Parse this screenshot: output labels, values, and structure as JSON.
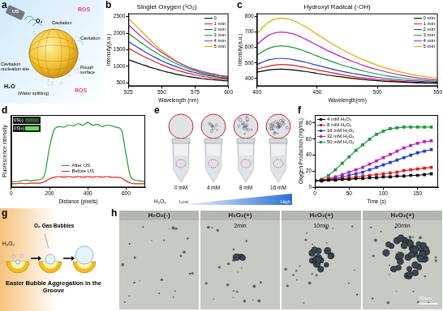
{
  "chart_data": [
    {
      "panel": "b",
      "type": "line",
      "title": "Singlet Oxygen (¹O₂)",
      "x_label": "Wavelength (nm)",
      "y_label": "Intensity(a.u.)",
      "x": [
        525,
        530,
        535,
        540,
        545,
        550,
        555,
        560,
        565,
        570,
        575,
        580,
        585,
        590,
        595,
        600
      ],
      "series": [
        {
          "name": "0",
          "color": "#000000",
          "values": [
            1200,
            1130,
            1060,
            990,
            930,
            870,
            820,
            770,
            730,
            690,
            660,
            630,
            610,
            590,
            570,
            560
          ]
        },
        {
          "name": "1 min",
          "color": "#e41a1c",
          "values": [
            1550,
            1440,
            1330,
            1230,
            1140,
            1050,
            970,
            900,
            840,
            790,
            740,
            700,
            670,
            640,
            620,
            600
          ]
        },
        {
          "name": "2 min",
          "color": "#1f3fd0",
          "values": [
            1750,
            1620,
            1500,
            1380,
            1270,
            1170,
            1080,
            1000,
            930,
            860,
            810,
            760,
            720,
            690,
            660,
            640
          ]
        },
        {
          "name": "3 min",
          "color": "#1a9a3a",
          "values": [
            2000,
            1850,
            1700,
            1560,
            1430,
            1310,
            1200,
            1100,
            1010,
            930,
            870,
            810,
            770,
            730,
            700,
            670
          ]
        },
        {
          "name": "4 min",
          "color": "#c020c0",
          "values": [
            2250,
            2070,
            1890,
            1720,
            1570,
            1420,
            1290,
            1170,
            1070,
            980,
            910,
            850,
            800,
            760,
            720,
            690
          ]
        },
        {
          "name": "5 min",
          "color": "#e0a800",
          "values": [
            2450,
            2250,
            2050,
            1850,
            1650,
            1480,
            1320,
            1180,
            1060,
            960,
            880,
            810,
            750,
            700,
            660,
            630
          ]
        }
      ],
      "xlim": [
        525,
        600
      ],
      "xticks": [
        525,
        550,
        575,
        600
      ],
      "ylim": [
        400,
        2600
      ],
      "yticks": [
        500,
        1000,
        1500,
        2000,
        2500
      ],
      "grid": false,
      "legend": "upper right",
      "marker": "none",
      "line_style": "solid"
    },
    {
      "panel": "c",
      "type": "line",
      "title": "Hydroxyl Radical (·OH)",
      "x_label": "Wavelength(nm)",
      "y_label": "Intensity(a.u.)",
      "x": [
        400,
        410,
        420,
        430,
        440,
        450,
        460,
        470,
        480,
        490,
        500,
        510,
        520,
        530,
        540,
        550
      ],
      "series": [
        {
          "name": "0 min",
          "color": "#000000",
          "values": [
            440,
            455,
            460,
            455,
            445,
            432,
            420,
            410,
            400,
            392,
            385,
            380,
            376,
            372,
            370,
            368
          ]
        },
        {
          "name": "1 min",
          "color": "#e41a1c",
          "values": [
            460,
            480,
            490,
            485,
            470,
            455,
            440,
            425,
            412,
            402,
            394,
            388,
            382,
            377,
            373,
            370
          ]
        },
        {
          "name": "2 min",
          "color": "#1f3fd0",
          "values": [
            490,
            520,
            530,
            522,
            505,
            485,
            465,
            447,
            432,
            418,
            407,
            398,
            390,
            384,
            379,
            375
          ]
        },
        {
          "name": "3 min",
          "color": "#1a9a3a",
          "values": [
            550,
            595,
            610,
            600,
            575,
            545,
            515,
            488,
            465,
            445,
            428,
            414,
            403,
            394,
            387,
            381
          ]
        },
        {
          "name": "4 min",
          "color": "#c020c0",
          "values": [
            620,
            680,
            700,
            688,
            655,
            615,
            575,
            540,
            508,
            480,
            457,
            437,
            421,
            408,
            397,
            389
          ]
        },
        {
          "name": "5 min",
          "color": "#e0a800",
          "values": [
            690,
            765,
            790,
            775,
            735,
            685,
            635,
            590,
            550,
            515,
            485,
            460,
            440,
            423,
            410,
            400
          ]
        }
      ],
      "xlim": [
        400,
        550
      ],
      "xticks": [
        400,
        450,
        500,
        550
      ],
      "ylim": [
        350,
        820
      ],
      "yticks": [
        400,
        500,
        600,
        700,
        800
      ],
      "grid": false,
      "legend": "upper right",
      "marker": "none",
      "line_style": "solid"
    },
    {
      "panel": "d",
      "type": "line",
      "x_label": "Distance (pixels)",
      "y_label": "Fluorescence intensity",
      "x": [
        0,
        25,
        50,
        75,
        100,
        125,
        150,
        175,
        200,
        225,
        250,
        275,
        300,
        325,
        350,
        375,
        400,
        425,
        450,
        475,
        500,
        525,
        550,
        575,
        600,
        625,
        650,
        675,
        700
      ],
      "series": [
        {
          "name": "After US",
          "color": "#1e9e2a",
          "values": [
            8,
            8,
            9,
            10,
            9,
            10,
            11,
            18,
            55,
            80,
            84,
            83,
            86,
            85,
            88,
            86,
            90,
            86,
            87,
            84,
            86,
            85,
            83,
            80,
            45,
            14,
            10,
            9,
            8
          ]
        },
        {
          "name": "Before US",
          "color": "#e41a1c",
          "values": [
            5,
            5,
            6,
            5,
            6,
            6,
            6,
            8,
            12,
            14,
            15,
            14,
            15,
            14,
            15,
            14,
            15,
            14,
            15,
            14,
            15,
            14,
            14,
            13,
            9,
            6,
            5,
            5,
            5
          ]
        }
      ],
      "xlim": [
        0,
        700
      ],
      "xticks": [
        0,
        200,
        400,
        600
      ],
      "ylim": [
        0,
        100
      ],
      "yticks": [],
      "tick_labels": "x",
      "grid": false,
      "legend": "lower center",
      "marker": "none",
      "line_style": "solid",
      "inset_labels": [
        "US(-)",
        "US(+)"
      ]
    },
    {
      "panel": "f",
      "type": "line",
      "x_label": "Time (s)",
      "y_label": "Oxygen Production (mg/mL)",
      "x": [
        0,
        10,
        20,
        30,
        40,
        50,
        60,
        70,
        80,
        90,
        100,
        110,
        120,
        130,
        140,
        150,
        160,
        170
      ],
      "series": [
        {
          "name": "4 mM H₂O₂",
          "color": "#000000",
          "values": [
            8,
            8,
            9,
            9,
            10,
            10,
            11,
            11,
            12,
            12,
            13,
            13,
            14,
            14,
            15,
            15,
            16,
            17
          ]
        },
        {
          "name": "8 mM H₂O₂",
          "color": "#e41a1c",
          "values": [
            8,
            9,
            10,
            10,
            11,
            12,
            13,
            14,
            15,
            16,
            17,
            18,
            19,
            21,
            22,
            23,
            24,
            25
          ]
        },
        {
          "name": "16 mM H₂O₂",
          "color": "#1f3fd0",
          "values": [
            8,
            9,
            10,
            11,
            13,
            15,
            17,
            19,
            22,
            25,
            28,
            31,
            34,
            37,
            40,
            43,
            45,
            47
          ]
        },
        {
          "name": "32 mM H₂O₂",
          "color": "#c020c0",
          "values": [
            8,
            9,
            11,
            13,
            16,
            19,
            22,
            25,
            29,
            33,
            37,
            41,
            45,
            49,
            52,
            55,
            57,
            58
          ]
        },
        {
          "name": "50 mM H₂O₂",
          "color": "#1a9a3a",
          "values": [
            8,
            10,
            15,
            22,
            30,
            38,
            46,
            53,
            60,
            66,
            70,
            73,
            74,
            75,
            75,
            75,
            75,
            75
          ]
        }
      ],
      "xlim": [
        0,
        180
      ],
      "xticks": [
        0,
        50,
        100,
        150
      ],
      "ylim": [
        0,
        90
      ],
      "yticks": [
        0,
        20,
        40,
        60,
        80
      ],
      "grid": false,
      "legend": "upper left",
      "marker": "square",
      "line_style": "solid"
    }
  ],
  "figure": {
    "a": {
      "panel": "a",
      "device": "US",
      "gas": "O₂",
      "ros_top": "ROS",
      "cavitation_top": "Cavitation",
      "cavitation_right": "Cavitation",
      "nucleation": "Cavitation nucleation site",
      "surface": "Rough surface",
      "water": "H₂O",
      "water_note": "(Water splitting)",
      "ros_bottom": "ROS"
    },
    "e": {
      "panel": "e",
      "tubes": [
        "0 mM",
        "4 mM",
        "8 mM",
        "16 mM"
      ],
      "gradient_title": "H₂O₂",
      "gradient_low": "Low",
      "gradient_high": "High"
    },
    "g": {
      "panel": "g",
      "bubbles": "O₂ Gas Bubbles",
      "reagent": "H₂O₂",
      "caption": "Easier Bubble Aggregation in the Groove"
    },
    "h": {
      "panel": "h",
      "images": [
        {
          "header": "H₂O₂(-)"
        },
        {
          "header": "H₂O₂(+)",
          "time": "2min"
        },
        {
          "header": "H₂O₂(+)",
          "time": "10min"
        },
        {
          "header": "H₂O₂(+)",
          "time": "20min"
        }
      ],
      "scale_bar": "50μm"
    }
  }
}
